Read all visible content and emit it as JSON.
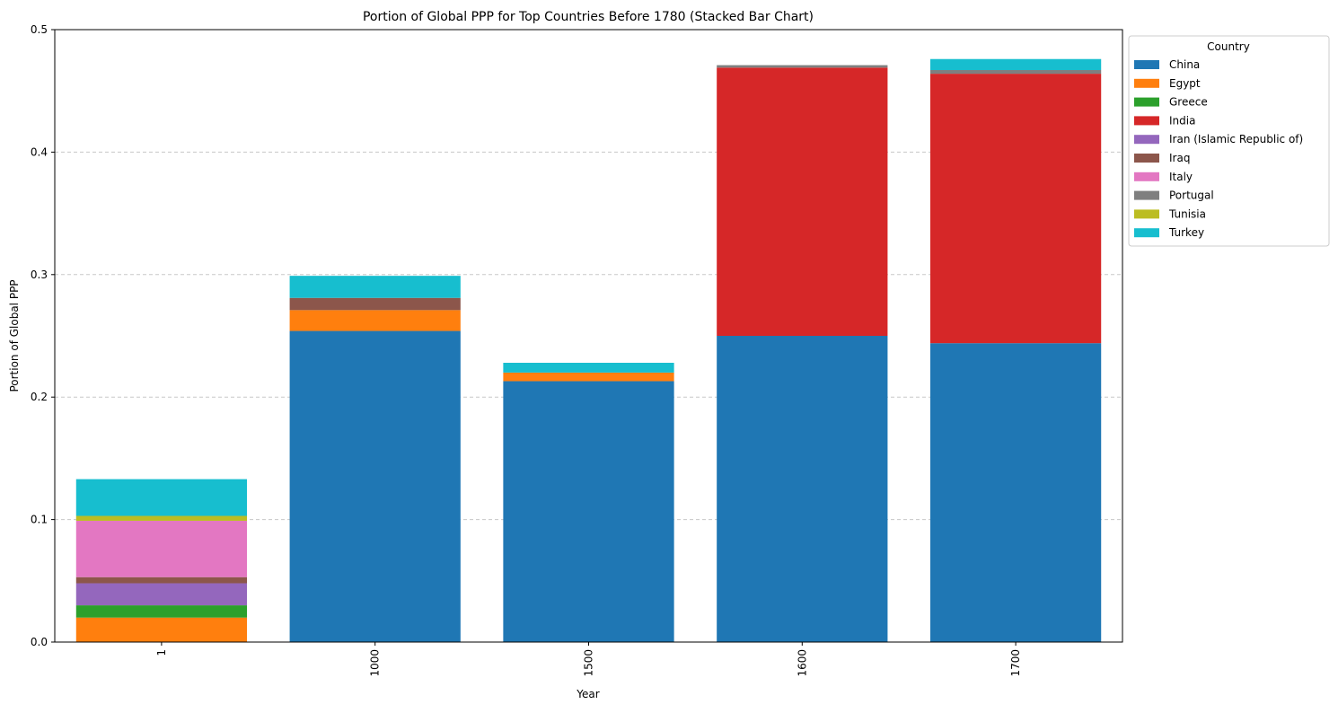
{
  "chart_data": {
    "type": "bar",
    "stacked": true,
    "title": "Portion of Global PPP for Top Countries Before 1780 (Stacked Bar Chart)",
    "xlabel": "Year",
    "ylabel": "Portion of Global PPP",
    "categories": [
      "1",
      "1000",
      "1500",
      "1600",
      "1700"
    ],
    "ylim": [
      0,
      0.5
    ],
    "yticks": [
      "0.0",
      "0.1",
      "0.2",
      "0.3",
      "0.4",
      "0.5"
    ],
    "grid": "y-dashed",
    "legend_title": "Country",
    "legend_position": "upper right outside",
    "series": [
      {
        "name": "China",
        "color": "#1f77b4",
        "values": [
          0.0,
          0.254,
          0.213,
          0.25,
          0.244
        ]
      },
      {
        "name": "Egypt",
        "color": "#ff7f0e",
        "values": [
          0.02,
          0.017,
          0.007,
          0.0,
          0.0
        ]
      },
      {
        "name": "Greece",
        "color": "#2ca02c",
        "values": [
          0.01,
          0.0,
          0.0,
          0.0,
          0.0
        ]
      },
      {
        "name": "India",
        "color": "#d62728",
        "values": [
          0.0,
          0.0,
          0.0,
          0.219,
          0.22
        ]
      },
      {
        "name": "Iran (Islamic Republic of)",
        "color": "#9467bd",
        "values": [
          0.018,
          0.0,
          0.0,
          0.0,
          0.0
        ]
      },
      {
        "name": "Iraq",
        "color": "#8c564b",
        "values": [
          0.005,
          0.01,
          0.0,
          0.0,
          0.0
        ]
      },
      {
        "name": "Italy",
        "color": "#e377c2",
        "values": [
          0.046,
          0.0,
          0.0,
          0.0,
          0.0
        ]
      },
      {
        "name": "Portugal",
        "color": "#7f7f7f",
        "values": [
          0.0,
          0.0,
          0.0,
          0.002,
          0.003
        ]
      },
      {
        "name": "Tunisia",
        "color": "#bcbd22",
        "values": [
          0.004,
          0.0,
          0.0,
          0.0,
          0.0
        ]
      },
      {
        "name": "Turkey",
        "color": "#17becf",
        "values": [
          0.03,
          0.018,
          0.008,
          0.0,
          0.009
        ]
      }
    ]
  }
}
